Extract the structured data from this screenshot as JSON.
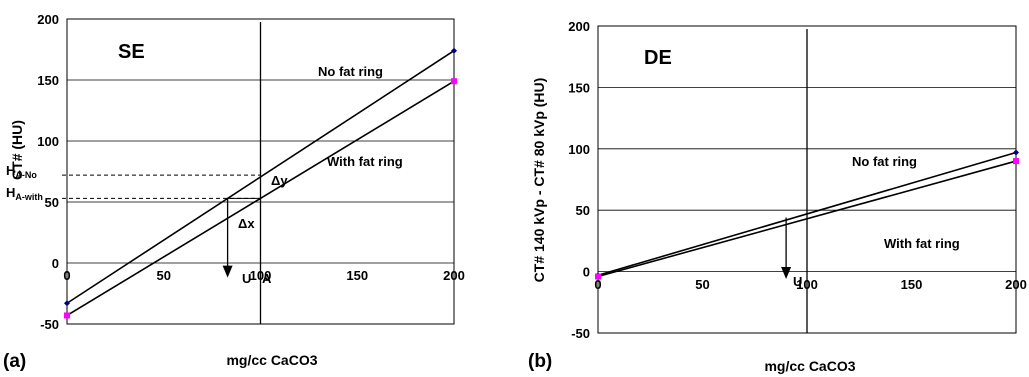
{
  "chart_data": [
    {
      "type": "line",
      "panel_label": "(a)",
      "title": "SE",
      "xlabel": "mg/cc CaCO3",
      "ylabel": "CT# (HU)",
      "xlim": [
        0,
        200
      ],
      "ylim": [
        -50,
        200
      ],
      "x_ticks": [
        "0",
        "50",
        "100",
        "150",
        "200"
      ],
      "y_ticks": [
        "-50",
        "0",
        "50",
        "100",
        "150",
        "200"
      ],
      "grid": "horizontal",
      "vertical_line_x": 100,
      "series": [
        {
          "name": "No fat ring",
          "x": [
            0,
            200
          ],
          "y": [
            -33,
            174
          ],
          "color": "#000080"
        },
        {
          "name": "With fat ring",
          "x": [
            0,
            200
          ],
          "y": [
            -43,
            149
          ],
          "color": "#ff00ff"
        }
      ],
      "annotations": {
        "h_no_main": "H",
        "h_no_sub": "A-No",
        "h_no_value": 72,
        "h_with_main": "H",
        "h_with_sub": "A-with",
        "h_with_value": 53,
        "dy": "Δy",
        "dx": "Δx",
        "u": "U",
        "a": "A",
        "arrow_x": 83
      }
    },
    {
      "type": "line",
      "panel_label": "(b)",
      "title": "DE",
      "xlabel": "mg/cc CaCO3",
      "ylabel": "CT# 140 kVp - CT# 80 kVp (HU)",
      "xlim": [
        0,
        200
      ],
      "ylim": [
        -50,
        200
      ],
      "x_ticks": [
        "0",
        "50",
        "100",
        "150",
        "200"
      ],
      "y_ticks": [
        "-50",
        "0",
        "50",
        "100",
        "150",
        "200"
      ],
      "grid": "horizontal",
      "vertical_line_x": 100,
      "series": [
        {
          "name": "No fat ring",
          "x": [
            0,
            200
          ],
          "y": [
            -3,
            97
          ],
          "color": "#000080"
        },
        {
          "name": "With fat ring",
          "x": [
            0,
            200
          ],
          "y": [
            -4,
            90
          ],
          "color": "#ff00ff"
        }
      ],
      "annotations": {
        "u": "U",
        "arrow_x": 90
      }
    }
  ]
}
